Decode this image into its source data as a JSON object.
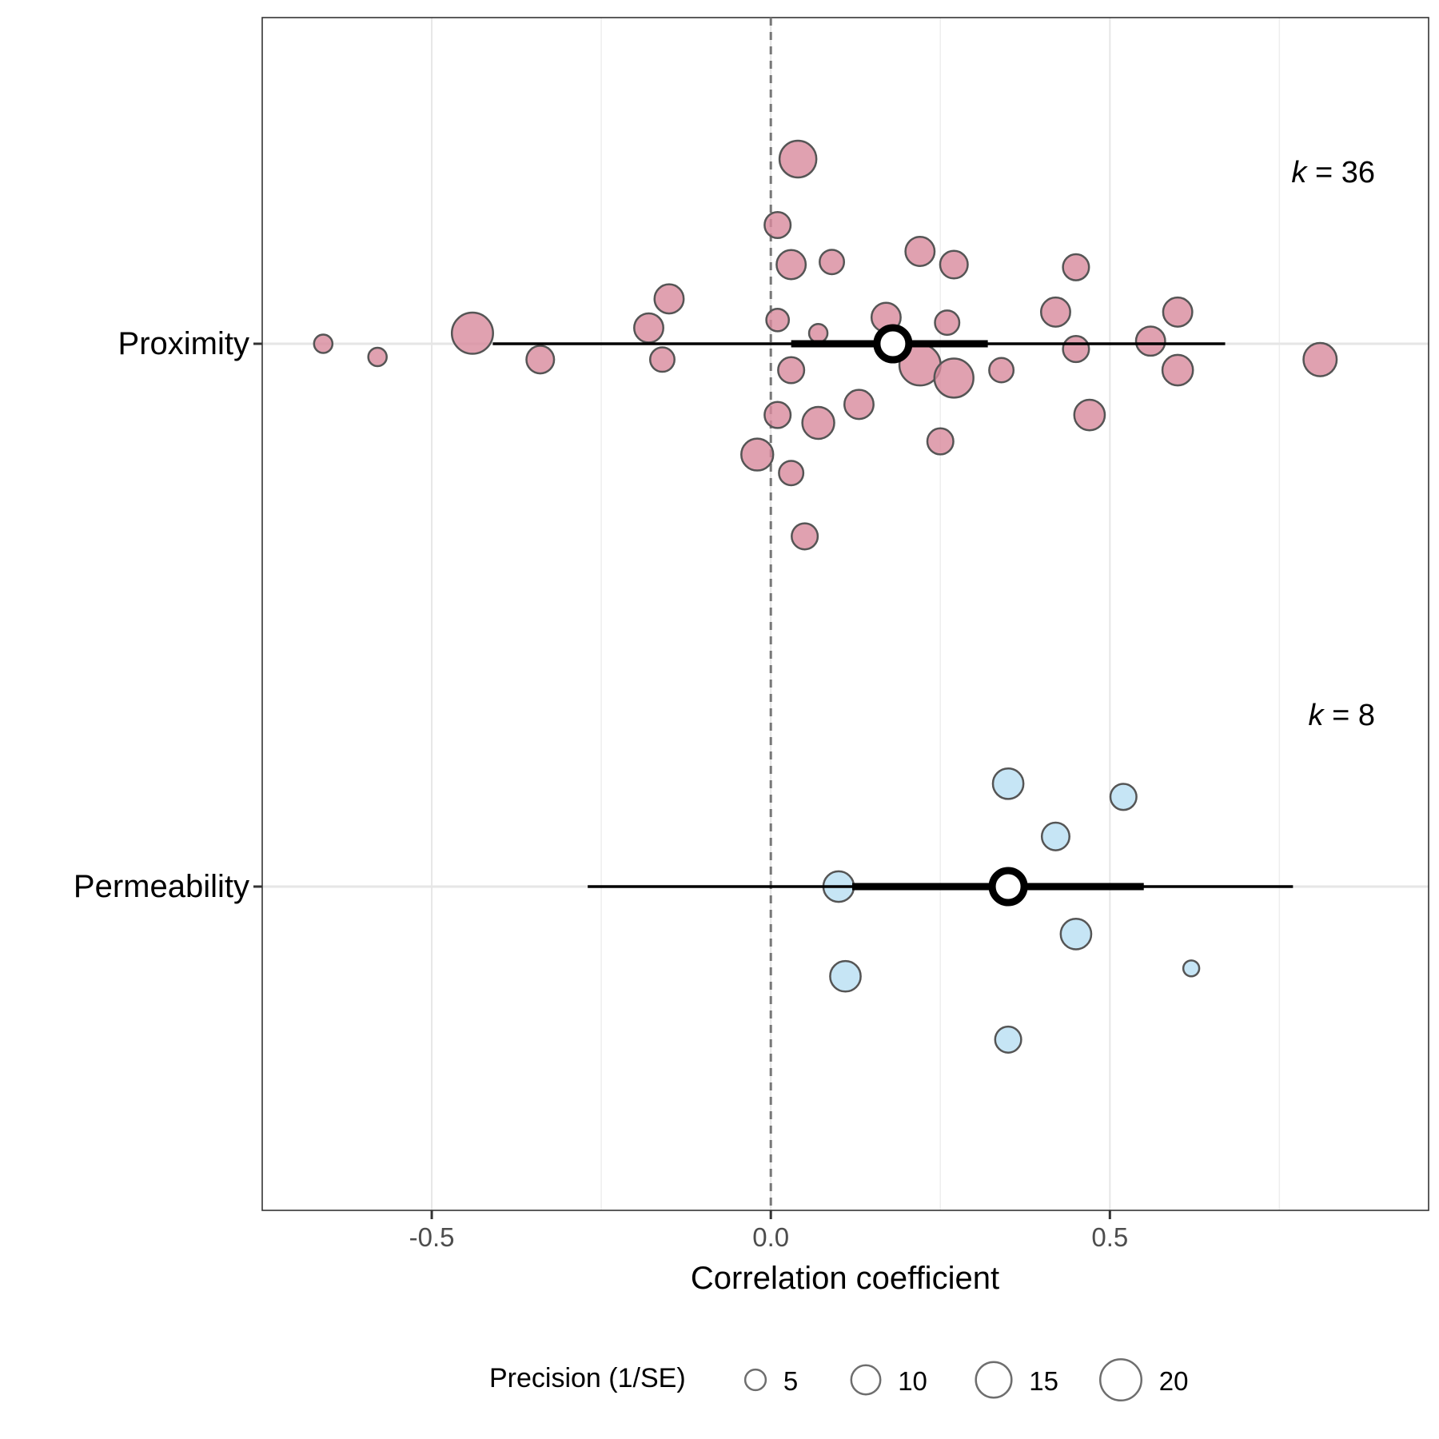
{
  "chart_data": {
    "type": "scatter",
    "subtype": "orchard plot",
    "xlabel": "Correlation coefficient",
    "ylabel": "",
    "xlim": [
      -0.75,
      0.97
    ],
    "x_ticks": [
      -0.5,
      0.0,
      0.5
    ],
    "x_tick_labels": [
      "-0.5",
      "0.0",
      "0.5"
    ],
    "reference_line": {
      "x": 0,
      "style": "dashed"
    },
    "grid": true,
    "groups": [
      {
        "name": "Proximity",
        "k_label": "36",
        "color": "#d88a9c",
        "estimate": 0.18,
        "ci": [
          0.03,
          0.32
        ],
        "pi": [
          -0.41,
          0.67
        ],
        "points": [
          {
            "x": 0.04,
            "jitter": 0.7,
            "precision": 16
          },
          {
            "x": 0.01,
            "jitter": 0.45,
            "precision": 8
          },
          {
            "x": 0.22,
            "jitter": 0.35,
            "precision": 10
          },
          {
            "x": 0.03,
            "jitter": 0.3,
            "precision": 10
          },
          {
            "x": 0.09,
            "jitter": 0.31,
            "precision": 7
          },
          {
            "x": 0.27,
            "jitter": 0.3,
            "precision": 9
          },
          {
            "x": 0.45,
            "jitter": 0.29,
            "precision": 8
          },
          {
            "x": -0.15,
            "jitter": 0.17,
            "precision": 10
          },
          {
            "x": 0.42,
            "jitter": 0.12,
            "precision": 10
          },
          {
            "x": 0.6,
            "jitter": 0.12,
            "precision": 10
          },
          {
            "x": 0.17,
            "jitter": 0.1,
            "precision": 10
          },
          {
            "x": 0.01,
            "jitter": 0.09,
            "precision": 6
          },
          {
            "x": 0.26,
            "jitter": 0.08,
            "precision": 7
          },
          {
            "x": -0.18,
            "jitter": 0.06,
            "precision": 10
          },
          {
            "x": -0.44,
            "jitter": 0.04,
            "precision": 20
          },
          {
            "x": 0.07,
            "jitter": 0.04,
            "precision": 4
          },
          {
            "x": -0.66,
            "jitter": 0.0,
            "precision": 4
          },
          {
            "x": 0.56,
            "jitter": 0.01,
            "precision": 10
          },
          {
            "x": 0.45,
            "jitter": -0.02,
            "precision": 8
          },
          {
            "x": -0.58,
            "jitter": -0.05,
            "precision": 4
          },
          {
            "x": -0.34,
            "jitter": -0.06,
            "precision": 9
          },
          {
            "x": -0.16,
            "jitter": -0.06,
            "precision": 7
          },
          {
            "x": 0.22,
            "jitter": -0.08,
            "precision": 20
          },
          {
            "x": 0.81,
            "jitter": -0.06,
            "precision": 13
          },
          {
            "x": 0.03,
            "jitter": -0.1,
            "precision": 8
          },
          {
            "x": 0.27,
            "jitter": -0.13,
            "precision": 18
          },
          {
            "x": 0.34,
            "jitter": -0.1,
            "precision": 7
          },
          {
            "x": 0.6,
            "jitter": -0.1,
            "precision": 11
          },
          {
            "x": 0.13,
            "jitter": -0.23,
            "precision": 10
          },
          {
            "x": 0.01,
            "jitter": -0.27,
            "precision": 8
          },
          {
            "x": 0.07,
            "jitter": -0.3,
            "precision": 12
          },
          {
            "x": 0.47,
            "jitter": -0.27,
            "precision": 11
          },
          {
            "x": 0.25,
            "jitter": -0.37,
            "precision": 8
          },
          {
            "x": -0.02,
            "jitter": -0.42,
            "precision": 12
          },
          {
            "x": 0.03,
            "jitter": -0.49,
            "precision": 7
          },
          {
            "x": 0.05,
            "jitter": -0.73,
            "precision": 8
          }
        ]
      },
      {
        "name": "Permeability",
        "k_label": "8",
        "color": "#b8dff3",
        "estimate": 0.35,
        "ci": [
          0.12,
          0.55
        ],
        "pi": [
          -0.27,
          0.77
        ],
        "points": [
          {
            "x": 0.35,
            "jitter": 0.39,
            "precision": 11
          },
          {
            "x": 0.52,
            "jitter": 0.34,
            "precision": 8
          },
          {
            "x": 0.42,
            "jitter": 0.19,
            "precision": 9
          },
          {
            "x": 0.1,
            "jitter": 0.0,
            "precision": 11
          },
          {
            "x": 0.45,
            "jitter": -0.18,
            "precision": 11
          },
          {
            "x": 0.11,
            "jitter": -0.34,
            "precision": 11
          },
          {
            "x": 0.62,
            "jitter": -0.31,
            "precision": 3
          },
          {
            "x": 0.35,
            "jitter": -0.58,
            "precision": 8
          }
        ]
      }
    ],
    "legend": {
      "title": "Precision (1/SE)",
      "position": "bottom",
      "entries": [
        {
          "label": "5",
          "value": 5
        },
        {
          "label": "10",
          "value": 10
        },
        {
          "label": "15",
          "value": 15
        },
        {
          "label": "20",
          "value": 20
        }
      ]
    }
  }
}
